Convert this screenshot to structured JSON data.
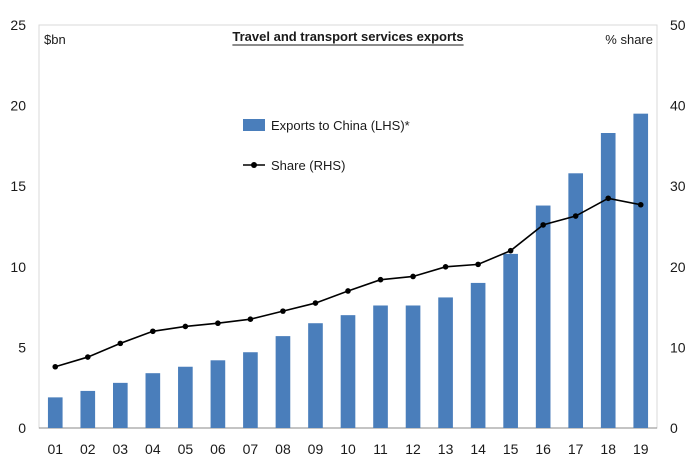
{
  "chart_data": {
    "type": "bar",
    "title": "Travel and transport services exports",
    "left_unit": "$bn",
    "right_unit": "% share",
    "categories": [
      "01",
      "02",
      "03",
      "04",
      "05",
      "06",
      "07",
      "08",
      "09",
      "10",
      "11",
      "12",
      "13",
      "14",
      "15",
      "16",
      "17",
      "18",
      "19"
    ],
    "series": [
      {
        "name": "Exports to China (LHS)*",
        "type": "bar",
        "axis": "left",
        "color": "#4a7ebb",
        "values": [
          1.9,
          2.3,
          2.8,
          3.4,
          3.8,
          4.2,
          4.7,
          5.7,
          6.5,
          7.0,
          7.6,
          7.6,
          8.1,
          9.0,
          10.8,
          13.8,
          15.8,
          18.3,
          19.5
        ]
      },
      {
        "name": "Share (RHS)",
        "type": "line",
        "axis": "right",
        "color": "#000000",
        "values": [
          7.6,
          8.8,
          10.5,
          12.0,
          12.6,
          13.0,
          13.5,
          14.5,
          15.5,
          17.0,
          18.4,
          18.8,
          20.0,
          20.3,
          22.0,
          25.2,
          26.3,
          28.5,
          27.7
        ]
      }
    ],
    "left_axis": {
      "min": 0,
      "max": 25,
      "ticks": [
        0,
        5,
        10,
        15,
        20,
        25
      ]
    },
    "right_axis": {
      "min": 0,
      "max": 50,
      "ticks": [
        0,
        10,
        20,
        30,
        40,
        50
      ]
    },
    "grid": false,
    "legend_position": "upper-middle"
  }
}
